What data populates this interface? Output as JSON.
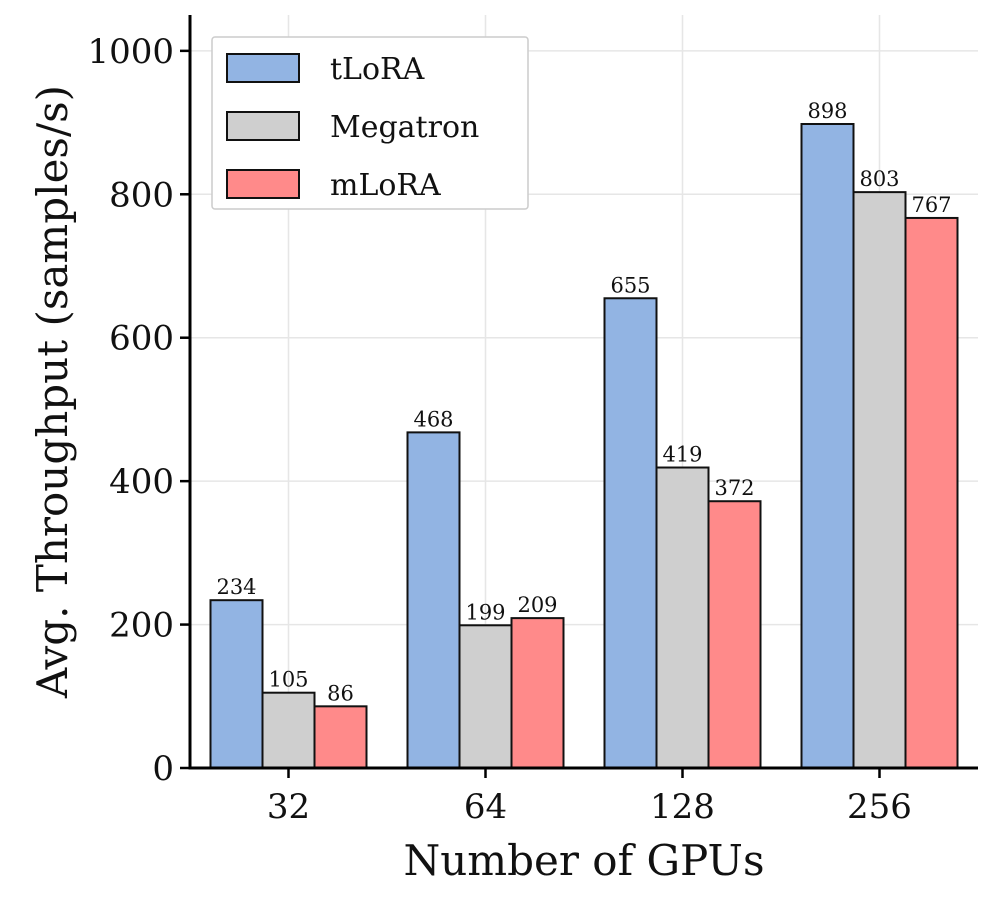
{
  "chart_data": {
    "type": "bar",
    "title": "",
    "xlabel": "Number of GPUs",
    "ylabel": "Avg. Throughput (samples/s)",
    "categories": [
      "32",
      "64",
      "128",
      "256"
    ],
    "series": [
      {
        "name": "tLoRA",
        "color": "#92B4E3",
        "values": [
          234,
          468,
          655,
          898
        ]
      },
      {
        "name": "Megatron",
        "color": "#CFCFCF",
        "values": [
          105,
          199,
          419,
          803
        ]
      },
      {
        "name": "mLoRA",
        "color": "#FF8A8A",
        "values": [
          86,
          209,
          372,
          767
        ]
      }
    ],
    "ylim": [
      0,
      1050
    ],
    "yticks": [
      0,
      200,
      400,
      600,
      800,
      1000
    ],
    "grid": true,
    "legend_position": "top-left",
    "bar_value_labels": true
  }
}
